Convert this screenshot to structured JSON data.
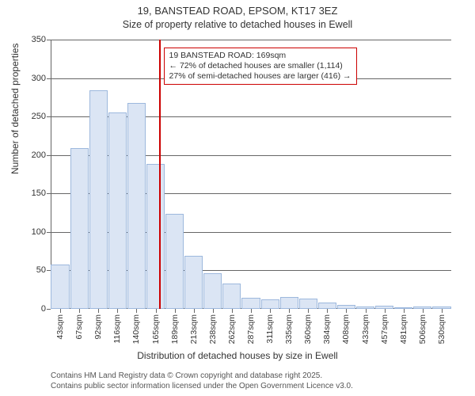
{
  "title": {
    "line1": "19, BANSTEAD ROAD, EPSOM, KT17 3EZ",
    "line2": "Size of property relative to detached houses in Ewell"
  },
  "chart": {
    "type": "histogram",
    "ylabel": "Number of detached properties",
    "xlabel": "Distribution of detached houses by size in Ewell",
    "ylim": [
      0,
      350
    ],
    "yticks": [
      0,
      50,
      100,
      150,
      200,
      250,
      300,
      350
    ],
    "xticks": [
      "43sqm",
      "67sqm",
      "92sqm",
      "116sqm",
      "140sqm",
      "165sqm",
      "189sqm",
      "213sqm",
      "238sqm",
      "262sqm",
      "287sqm",
      "311sqm",
      "335sqm",
      "360sqm",
      "384sqm",
      "408sqm",
      "433sqm",
      "457sqm",
      "481sqm",
      "506sqm",
      "530sqm"
    ],
    "background_color": "#ffffff",
    "axis_color": "#666666",
    "bars": {
      "values": [
        58,
        209,
        284,
        255,
        268,
        188,
        124,
        69,
        46,
        33,
        14,
        12,
        15,
        13,
        8,
        5,
        3,
        4,
        2,
        3,
        3
      ],
      "fill_color": "#dbe5f4",
      "border_color": "#9db8dd",
      "bar_width_frac": 0.96
    },
    "reference_line": {
      "value_sqm": 169,
      "color": "#cc0000",
      "width": 2
    },
    "annotation": {
      "line1": "19 BANSTEAD ROAD: 169sqm",
      "line2": "← 72% of detached houses are smaller (1,114)",
      "line3": "27% of semi-detached houses are larger (416) →",
      "border_color": "#cc0000",
      "bg_color": "#ffffff",
      "fontsize": 10.5
    }
  },
  "footer": {
    "line1": "Contains HM Land Registry data © Crown copyright and database right 2025.",
    "line2": "Contains public sector information licensed under the Open Government Licence v3.0."
  }
}
